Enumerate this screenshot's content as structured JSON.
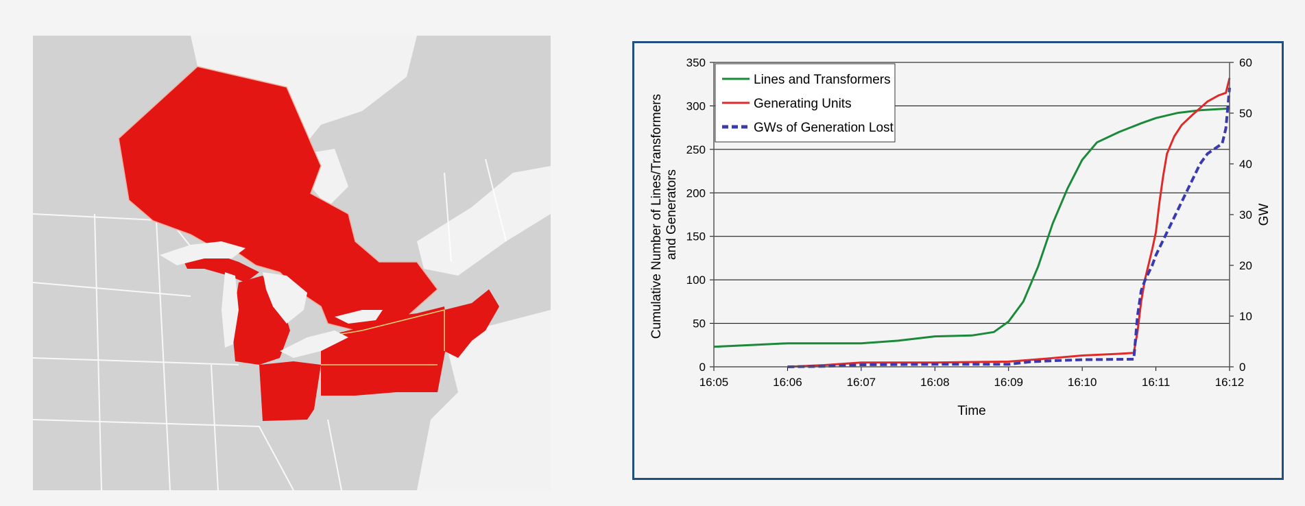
{
  "map": {
    "colors": {
      "outage": "#e31614",
      "land": "#d2d2d2",
      "water": "#f2f2f2",
      "border": "#ffffff"
    }
  },
  "chart_data": {
    "type": "line",
    "title": "",
    "xlabel": "Time",
    "ylabel_lines": [
      "Cumulative Number of Lines/Transformers",
      "and Generators"
    ],
    "y2label": "GW",
    "x_ticks": [
      "16:05",
      "16:06",
      "16:07",
      "16:08",
      "16:09",
      "16:10",
      "16:11",
      "16:12"
    ],
    "x_range_minutes": [
      0,
      7
    ],
    "ylim": [
      0,
      350
    ],
    "y_ticks": [
      0,
      50,
      100,
      150,
      200,
      250,
      300,
      350
    ],
    "y2lim": [
      0,
      60
    ],
    "y2_ticks": [
      0,
      10,
      20,
      30,
      40,
      50,
      60
    ],
    "grid": "horizontal",
    "legend_position": "top-left",
    "series": [
      {
        "name": "Lines and Transformers",
        "axis": "left",
        "color": "#1a8a3a",
        "style": "solid",
        "points": [
          [
            0,
            23
          ],
          [
            0.5,
            25
          ],
          [
            1,
            27
          ],
          [
            1.5,
            27
          ],
          [
            2,
            27
          ],
          [
            2.5,
            30
          ],
          [
            2.8,
            33
          ],
          [
            3,
            35
          ],
          [
            3.5,
            36
          ],
          [
            3.8,
            40
          ],
          [
            4.0,
            52
          ],
          [
            4.2,
            75
          ],
          [
            4.4,
            115
          ],
          [
            4.6,
            165
          ],
          [
            4.8,
            205
          ],
          [
            5.0,
            238
          ],
          [
            5.2,
            258
          ],
          [
            5.5,
            270
          ],
          [
            5.8,
            280
          ],
          [
            6.0,
            286
          ],
          [
            6.3,
            292
          ],
          [
            6.6,
            295
          ],
          [
            7.0,
            297
          ]
        ]
      },
      {
        "name": "Generating Units",
        "axis": "left",
        "color": "#e02a2a",
        "style": "solid",
        "points": [
          [
            1,
            0
          ],
          [
            1.5,
            2
          ],
          [
            2,
            5
          ],
          [
            3,
            5
          ],
          [
            4,
            6
          ],
          [
            4.3,
            8
          ],
          [
            4.6,
            10
          ],
          [
            5.0,
            13
          ],
          [
            5.5,
            15
          ],
          [
            5.7,
            16
          ],
          [
            5.75,
            40
          ],
          [
            5.8,
            75
          ],
          [
            5.85,
            100
          ],
          [
            5.95,
            135
          ],
          [
            6.0,
            155
          ],
          [
            6.05,
            190
          ],
          [
            6.1,
            220
          ],
          [
            6.15,
            245
          ],
          [
            6.25,
            265
          ],
          [
            6.35,
            278
          ],
          [
            6.5,
            290
          ],
          [
            6.7,
            305
          ],
          [
            6.85,
            312
          ],
          [
            6.95,
            315
          ],
          [
            7.0,
            332
          ]
        ]
      },
      {
        "name": "GWs of Generation Lost",
        "axis": "right",
        "color": "#3a3ab0",
        "style": "dashed",
        "points": [
          [
            1,
            0
          ],
          [
            1.5,
            0.1
          ],
          [
            2,
            0.4
          ],
          [
            3,
            0.5
          ],
          [
            4,
            0.5
          ],
          [
            4.3,
            1
          ],
          [
            4.6,
            1.2
          ],
          [
            5.0,
            1.4
          ],
          [
            5.7,
            1.5
          ],
          [
            5.75,
            10
          ],
          [
            5.8,
            15
          ],
          [
            5.85,
            17
          ],
          [
            5.95,
            20
          ],
          [
            6.0,
            22
          ],
          [
            6.1,
            25
          ],
          [
            6.2,
            28
          ],
          [
            6.3,
            31
          ],
          [
            6.4,
            34
          ],
          [
            6.5,
            37
          ],
          [
            6.6,
            40
          ],
          [
            6.7,
            42
          ],
          [
            6.8,
            43
          ],
          [
            6.9,
            44
          ],
          [
            6.95,
            47
          ],
          [
            7.0,
            55
          ]
        ]
      }
    ]
  }
}
